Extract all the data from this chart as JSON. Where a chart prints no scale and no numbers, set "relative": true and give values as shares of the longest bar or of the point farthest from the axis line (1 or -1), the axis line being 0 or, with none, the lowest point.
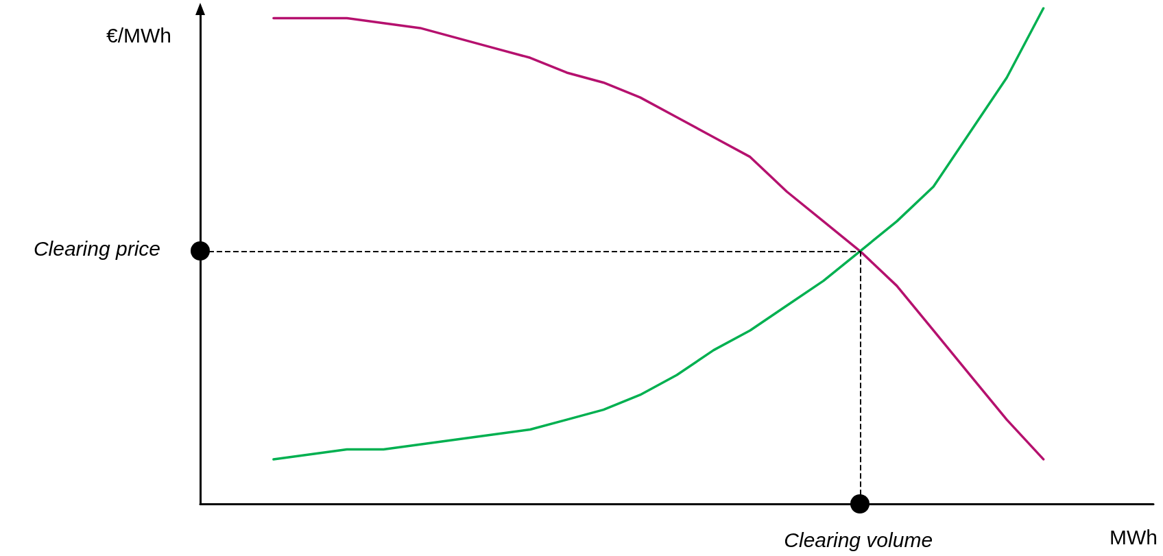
{
  "chart_data": {
    "type": "line",
    "relative": true,
    "xlabel": "MWh",
    "ylabel": "€/MWh",
    "annotations": [
      "Clearing volume"
    ],
    "marker": "none",
    "categories": [
      null,
      null,
      null,
      null,
      null,
      null,
      null,
      null,
      null,
      null,
      null,
      null,
      null,
      null,
      null,
      null,
      null,
      null,
      null,
      null,
      null,
      null,
      null,
      null,
      null,
      null,
      null
    ],
    "ref_lines": [
      {
        "axis": "y",
        "value": 0.51,
        "label": "Clearing price",
        "color": "#000000",
        "line_style": "dashed"
      }
    ],
    "series": [
      {
        "color": "#b5116e",
        "values": [
          null,
          null,
          0.98,
          0.98,
          0.98,
          0.97,
          0.96,
          0.94,
          0.92,
          0.9,
          0.87,
          0.85,
          0.82,
          0.78,
          0.74,
          0.7,
          0.63,
          0.57,
          0.51,
          0.44,
          0.35,
          0.26,
          0.17,
          0.09,
          null,
          null,
          null
        ]
      },
      {
        "color": "#00b050",
        "values": [
          null,
          null,
          0.09,
          0.1,
          0.11,
          0.11,
          0.12,
          0.13,
          0.14,
          0.15,
          0.17,
          0.19,
          0.22,
          0.26,
          0.31,
          0.35,
          0.4,
          0.45,
          0.51,
          0.57,
          0.64,
          0.75,
          0.86,
          1.0,
          null,
          null,
          null
        ]
      }
    ]
  }
}
